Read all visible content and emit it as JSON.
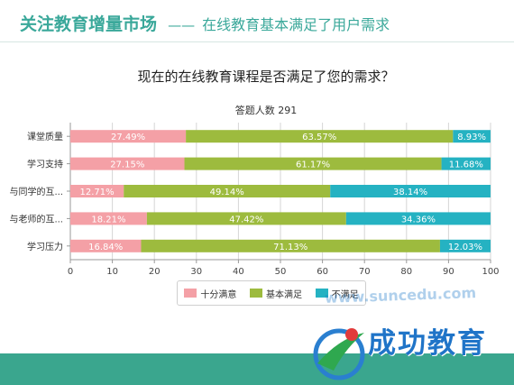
{
  "header": {
    "title": "关注教育增量市场",
    "separator": "——",
    "subtitle": "在线教育基本满足了用户需求"
  },
  "colors": {
    "accent": "#3aa89a",
    "unsatisfied": "#f4a0a6",
    "basic": "#9dbb3e",
    "not_enough": "#25b2c2"
  },
  "chart_data": {
    "type": "bar",
    "stacked": true,
    "orientation": "horizontal",
    "title": "现在的在线教育课程是否满足了您的需求？",
    "subtitle": "答题人数 291",
    "categories": [
      "课堂质量",
      "学习支持",
      "与同学的互...",
      "与老师的互...",
      "学习压力"
    ],
    "series": [
      {
        "name": "十分满意",
        "values": [
          27.49,
          27.15,
          12.71,
          18.21,
          16.84
        ],
        "labels": [
          "27.49%",
          "27.15%",
          "12.71%",
          "18.21%",
          "16.84%"
        ]
      },
      {
        "name": "基本满足",
        "values": [
          63.57,
          61.17,
          49.14,
          47.42,
          71.13
        ],
        "labels": [
          "63.57%",
          "61.17%",
          "49.14%",
          "47.42%",
          "71.13%"
        ]
      },
      {
        "name": "不满足",
        "values": [
          8.93,
          11.68,
          38.14,
          34.36,
          12.03
        ],
        "labels": [
          "8.93%",
          "11.68%",
          "38.14%",
          "34.36%",
          "12.03%"
        ]
      }
    ],
    "xlim": [
      0,
      100
    ],
    "xticks": [
      "0",
      "10",
      "20",
      "30",
      "40",
      "50",
      "60",
      "70",
      "80",
      "90",
      "100"
    ],
    "grid": true,
    "legend_position": "bottom"
  },
  "logo": {
    "text": "成功教育",
    "watermark": "www.suncedu.com"
  }
}
